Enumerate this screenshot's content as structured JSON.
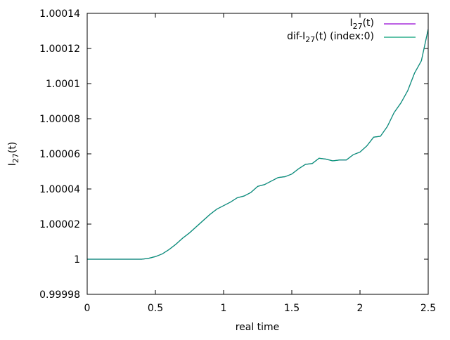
{
  "chart_data": {
    "type": "line",
    "title": "",
    "xlabel": "real time",
    "ylabel": {
      "base": "I",
      "sub": "27",
      "suffix": "(t)"
    },
    "xlim": [
      0,
      2.5
    ],
    "ylim": [
      0.99998,
      1.00014
    ],
    "x_ticks": [
      0,
      0.5,
      1,
      1.5,
      2,
      2.5
    ],
    "x_tick_labels": [
      "0",
      "0.5",
      "1",
      "1.5",
      "2",
      "2.5"
    ],
    "y_ticks": [
      0.99998,
      1.0,
      1.00002,
      1.00004,
      1.00006,
      1.00008,
      1.0001,
      1.00012,
      1.00014
    ],
    "y_tick_labels": [
      "0.99998",
      "1",
      "1.00002",
      "1.00004",
      "1.00006",
      "1.00008",
      "1.0001",
      "1.00012",
      "1.00014"
    ],
    "grid": false,
    "legend_position": "top-right",
    "series": [
      {
        "name": "I27(t)",
        "label": {
          "base": "I",
          "sub": "27",
          "suffix": "(t)"
        },
        "color": "#9400d3",
        "x": [
          0,
          0.3,
          0.4,
          0.45,
          0.5,
          0.55,
          0.6,
          0.65,
          0.7,
          0.75,
          0.8,
          0.85,
          0.9,
          0.95,
          1.0,
          1.05,
          1.1,
          1.15,
          1.2,
          1.25,
          1.3,
          1.35,
          1.4,
          1.45,
          1.5,
          1.55,
          1.6,
          1.65,
          1.7,
          1.75,
          1.8,
          1.85,
          1.9,
          1.95,
          2.0,
          2.05,
          2.1,
          2.15,
          2.2,
          2.25,
          2.3,
          2.35,
          2.4,
          2.45,
          2.5
        ],
        "y": [
          1.0,
          1.0,
          1.0,
          1.0000005,
          1.0000015,
          1.000003,
          1.0000055,
          1.0000085,
          1.000012,
          1.000015,
          1.0000185,
          1.000022,
          1.0000255,
          1.0000285,
          1.0000305,
          1.0000325,
          1.000035,
          1.000036,
          1.000038,
          1.0000415,
          1.0000425,
          1.0000445,
          1.0000465,
          1.000047,
          1.0000485,
          1.0000515,
          1.000054,
          1.0000545,
          1.0000575,
          1.000057,
          1.000056,
          1.0000565,
          1.0000565,
          1.0000595,
          1.000061,
          1.0000645,
          1.0000695,
          1.00007,
          1.0000755,
          1.0000835,
          1.000089,
          1.000096,
          1.000106,
          1.000113,
          1.000131
        ]
      },
      {
        "name": "dif-I27(t) (index:0)",
        "label": {
          "base": "dif-I",
          "sub": "27",
          "suffix": "(t) (index:0)"
        },
        "color": "#009e73",
        "x": [
          0,
          0.3,
          0.4,
          0.45,
          0.5,
          0.55,
          0.6,
          0.65,
          0.7,
          0.75,
          0.8,
          0.85,
          0.9,
          0.95,
          1.0,
          1.05,
          1.1,
          1.15,
          1.2,
          1.25,
          1.3,
          1.35,
          1.4,
          1.45,
          1.5,
          1.55,
          1.6,
          1.65,
          1.7,
          1.75,
          1.8,
          1.85,
          1.9,
          1.95,
          2.0,
          2.05,
          2.1,
          2.15,
          2.2,
          2.25,
          2.3,
          2.35,
          2.4,
          2.45,
          2.5
        ],
        "y": [
          1.0,
          1.0,
          1.0,
          1.0000005,
          1.0000015,
          1.000003,
          1.0000055,
          1.0000085,
          1.000012,
          1.000015,
          1.0000185,
          1.000022,
          1.0000255,
          1.0000285,
          1.0000305,
          1.0000325,
          1.000035,
          1.000036,
          1.000038,
          1.0000415,
          1.0000425,
          1.0000445,
          1.0000465,
          1.000047,
          1.0000485,
          1.0000515,
          1.000054,
          1.0000545,
          1.0000575,
          1.000057,
          1.000056,
          1.0000565,
          1.0000565,
          1.0000595,
          1.000061,
          1.0000645,
          1.0000695,
          1.00007,
          1.0000755,
          1.0000835,
          1.000089,
          1.000096,
          1.000106,
          1.000113,
          1.000131
        ]
      }
    ]
  }
}
